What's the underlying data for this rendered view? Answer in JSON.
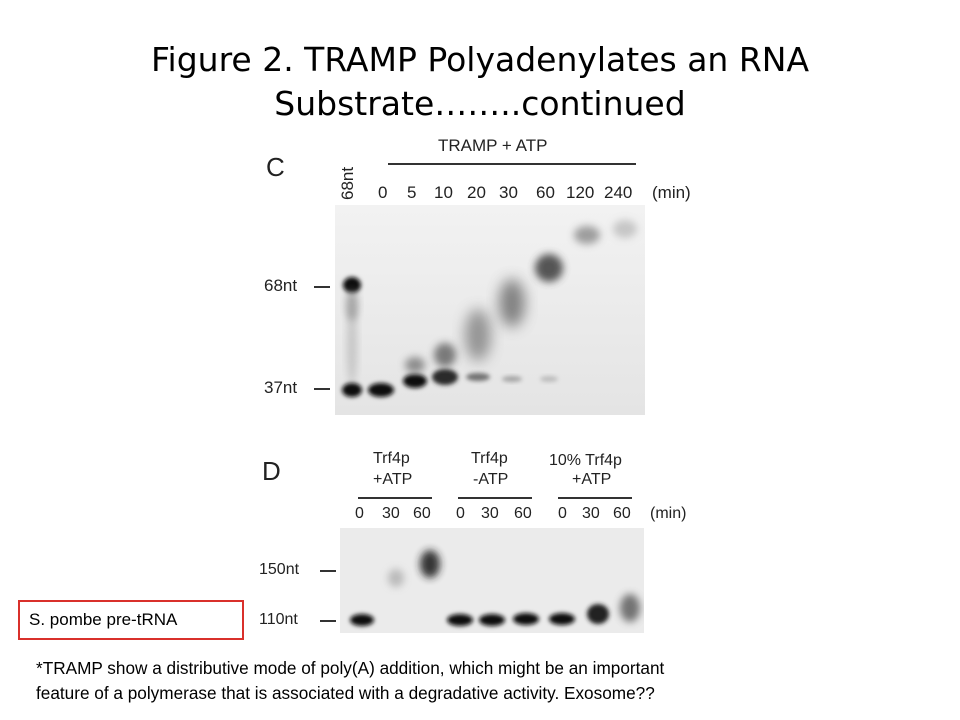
{
  "title": {
    "line1": "Figure 2. TRAMP Polyadenylates an RNA",
    "line2": "Substrate……..continued"
  },
  "panel_c": {
    "label": "C",
    "header": "TRAMP + ATP",
    "marker_lane": "68nt",
    "time_points": [
      "0",
      "5",
      "10",
      "20",
      "30",
      "60",
      "120",
      "240"
    ],
    "unit": "(min)",
    "size_markers": [
      "68nt",
      "37nt"
    ]
  },
  "panel_d": {
    "label": "D",
    "groups": [
      {
        "line1": "Trf4p",
        "line2": "+ATP"
      },
      {
        "line1": "Trf4p",
        "line2": "-ATP"
      },
      {
        "line1": "10% Trf4p",
        "line2": "+ATP"
      }
    ],
    "time_points": [
      "0",
      "30",
      "60",
      "0",
      "30",
      "60",
      "0",
      "30",
      "60"
    ],
    "unit": "(min)",
    "size_markers": [
      "150nt",
      "110nt"
    ]
  },
  "callout": "S. pombe pre-tRNA",
  "footnote": {
    "line1": "*TRAMP show a distributive mode of poly(A) addition, which might be an important",
    "line2": "feature of a polymerase that is associated with a degradative activity.    Exosome??"
  },
  "colors": {
    "callout_border": "#d9302b",
    "gel_background": "#ececec",
    "band": "#0a0a0a"
  }
}
